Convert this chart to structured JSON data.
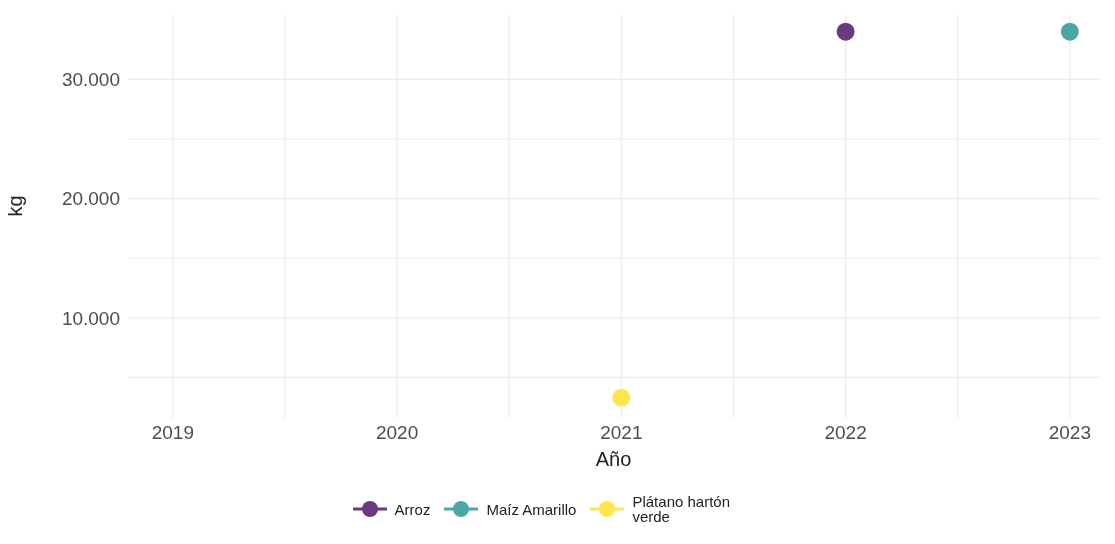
{
  "chart_data": {
    "type": "line",
    "xlabel": "Año",
    "ylabel": "kg",
    "marker": "circle",
    "legend": "bottom",
    "grid": true,
    "xlim": [
      2018.8,
      2023.13
    ],
    "xticks": [
      2019,
      {
        "value": 2019.5,
        "label": null
      },
      2020,
      {
        "value": 2020.5,
        "label": null
      },
      2021,
      {
        "value": 2021.5,
        "label": null
      },
      2022,
      {
        "value": 2022.5,
        "label": null
      },
      2023
    ],
    "ylim": [
      1600,
      35400
    ],
    "yticks": [
      {
        "value": 5000,
        "label": null
      },
      {
        "value": 10000,
        "label": "10.000"
      },
      {
        "value": 15000,
        "label": null
      },
      {
        "value": 20000,
        "label": "20.000"
      },
      {
        "value": 25000,
        "label": null
      },
      {
        "value": 30000,
        "label": "30.000"
      }
    ],
    "series": [
      {
        "name": "Arroz",
        "color": "#6b3a7d",
        "x": [
          2022
        ],
        "values": [
          34000
        ]
      },
      {
        "name": "Maíz Amarillo",
        "color": "#4aa7a3",
        "x": [
          2023
        ],
        "values": [
          34000
        ]
      },
      {
        "name": "Plátano hartón verde",
        "color": "#fde74c",
        "x": [
          2021
        ],
        "values": [
          3300
        ]
      }
    ]
  }
}
